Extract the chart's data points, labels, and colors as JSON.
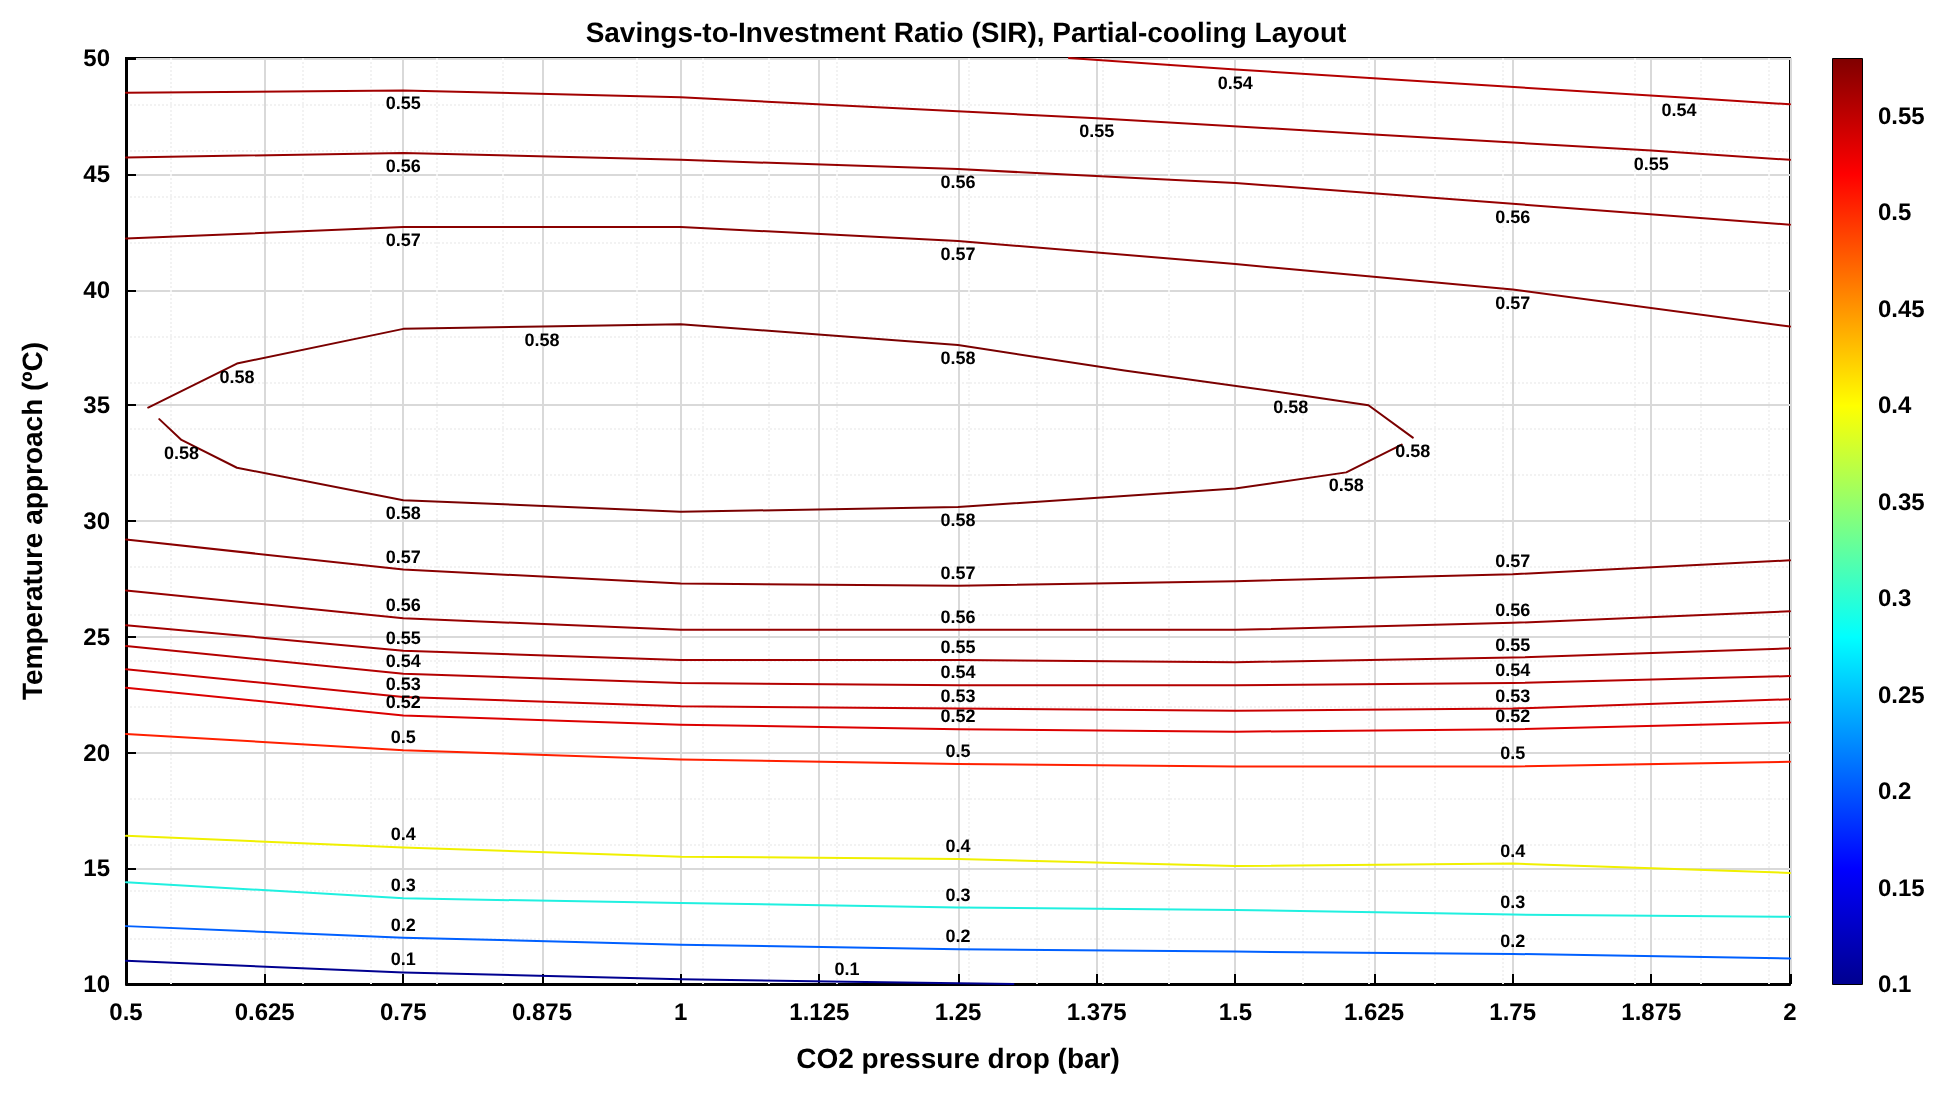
{
  "chart_data": {
    "type": "line",
    "title": "Savings-to-Investment Ratio (SIR), Partial-cooling Layout",
    "xlabel": "CO2 pressure drop (bar)",
    "ylabel": "Temperature approach (ºC)",
    "xlim": [
      0.5,
      2
    ],
    "xticks": [
      0.5,
      0.625,
      0.75,
      0.875,
      1,
      1.125,
      1.25,
      1.375,
      1.5,
      1.625,
      1.75,
      1.875,
      2
    ],
    "ylim": [
      10,
      50
    ],
    "yticks": [
      10,
      15,
      20,
      25,
      30,
      35,
      40,
      45,
      50
    ],
    "grid": true,
    "legend": false,
    "marker": "none",
    "line_style": "solid",
    "clim": [
      0.1,
      0.58
    ],
    "cticks": [
      0.1,
      0.15,
      0.2,
      0.25,
      0.3,
      0.35,
      0.4,
      0.45,
      0.5,
      0.55
    ],
    "series": [
      {
        "name": "0.54",
        "color": "#b40000",
        "x": [
          1.35,
          1.5,
          1.7,
          1.9,
          2
        ],
        "values": [
          50,
          49.5,
          48.9,
          48.3,
          48.0
        ]
      },
      {
        "name": "0.55",
        "color": "#a20000",
        "x": [
          0.5,
          0.75,
          1,
          1.375,
          1.625,
          1.875,
          2
        ],
        "values": [
          48.5,
          48.6,
          48.3,
          47.4,
          46.7,
          46.0,
          45.6
        ]
      },
      {
        "name": "0.56",
        "color": "#960000",
        "x": [
          0.5,
          0.75,
          1,
          1.25,
          1.5,
          1.75,
          2
        ],
        "values": [
          45.7,
          45.9,
          45.6,
          45.2,
          44.6,
          43.7,
          42.8
        ]
      },
      {
        "name": "0.57",
        "color": "#8a0000",
        "x": [
          0.5,
          0.75,
          1,
          1.25,
          1.5,
          1.75,
          2
        ],
        "values": [
          42.2,
          42.7,
          42.7,
          42.1,
          41.1,
          40.0,
          38.4
        ]
      },
      {
        "name": "0.58",
        "color": "#7a0000",
        "x": [
          0.52,
          0.6,
          0.75,
          0.875,
          1,
          1.25,
          1.4,
          1.55,
          1.62,
          1.66
        ],
        "values": [
          34.9,
          36.8,
          38.3,
          38.4,
          38.5,
          37.6,
          36.5,
          35.5,
          35.0,
          33.6
        ]
      },
      {
        "name": "0.58",
        "color": "#7a0000",
        "x": [
          0.53,
          0.55,
          0.6,
          0.75,
          1,
          1.25,
          1.5,
          1.6,
          1.65
        ],
        "values": [
          34.4,
          33.5,
          32.3,
          30.9,
          30.4,
          30.6,
          31.4,
          32.1,
          33.3
        ]
      },
      {
        "name": "0.57",
        "color": "#8a0000",
        "x": [
          0.5,
          0.75,
          1,
          1.25,
          1.5,
          1.75,
          2
        ],
        "values": [
          29.2,
          27.9,
          27.3,
          27.2,
          27.4,
          27.7,
          28.3
        ]
      },
      {
        "name": "0.56",
        "color": "#960000",
        "x": [
          0.5,
          0.75,
          1,
          1.25,
          1.5,
          1.75,
          2
        ],
        "values": [
          27.0,
          25.8,
          25.3,
          25.3,
          25.3,
          25.6,
          26.1
        ]
      },
      {
        "name": "0.55",
        "color": "#a20000",
        "x": [
          0.5,
          0.75,
          1,
          1.25,
          1.5,
          1.75,
          2
        ],
        "values": [
          25.5,
          24.4,
          24.0,
          24.0,
          23.9,
          24.1,
          24.5
        ]
      },
      {
        "name": "0.54",
        "color": "#b40000",
        "x": [
          0.5,
          0.75,
          1,
          1.25,
          1.5,
          1.75,
          2
        ],
        "values": [
          24.6,
          23.4,
          23.0,
          22.9,
          22.9,
          23.0,
          23.3
        ]
      },
      {
        "name": "0.53",
        "color": "#c80000",
        "x": [
          0.5,
          0.75,
          1,
          1.25,
          1.5,
          1.75,
          2
        ],
        "values": [
          23.6,
          22.4,
          22.0,
          21.9,
          21.8,
          21.9,
          22.3
        ]
      },
      {
        "name": "0.52",
        "color": "#dc0000",
        "x": [
          0.5,
          0.75,
          1,
          1.25,
          1.5,
          1.75,
          2
        ],
        "values": [
          22.8,
          21.6,
          21.2,
          21.0,
          20.9,
          21.0,
          21.3
        ]
      },
      {
        "name": "0.5",
        "color": "#ff2000",
        "x": [
          0.5,
          0.75,
          1,
          1.25,
          1.5,
          1.75,
          2
        ],
        "values": [
          20.8,
          20.1,
          19.7,
          19.5,
          19.4,
          19.4,
          19.6
        ]
      },
      {
        "name": "0.4",
        "color": "#f0f000",
        "x": [
          0.5,
          0.75,
          1,
          1.25,
          1.5,
          1.75,
          2
        ],
        "values": [
          16.4,
          15.9,
          15.5,
          15.4,
          15.1,
          15.2,
          14.8
        ]
      },
      {
        "name": "0.3",
        "color": "#20f0e0",
        "x": [
          0.5,
          0.75,
          1,
          1.25,
          1.5,
          1.75,
          2
        ],
        "values": [
          14.4,
          13.7,
          13.5,
          13.3,
          13.2,
          13.0,
          12.9
        ]
      },
      {
        "name": "0.2",
        "color": "#0060ff",
        "x": [
          0.5,
          0.75,
          1,
          1.25,
          1.5,
          1.75,
          2
        ],
        "values": [
          12.5,
          12.0,
          11.7,
          11.5,
          11.4,
          11.3,
          11.1
        ]
      },
      {
        "name": "0.1",
        "color": "#000090",
        "x": [
          0.5,
          0.75,
          1,
          1.15,
          1.3
        ],
        "values": [
          11.0,
          10.5,
          10.2,
          10.1,
          10.0
        ]
      }
    ]
  }
}
